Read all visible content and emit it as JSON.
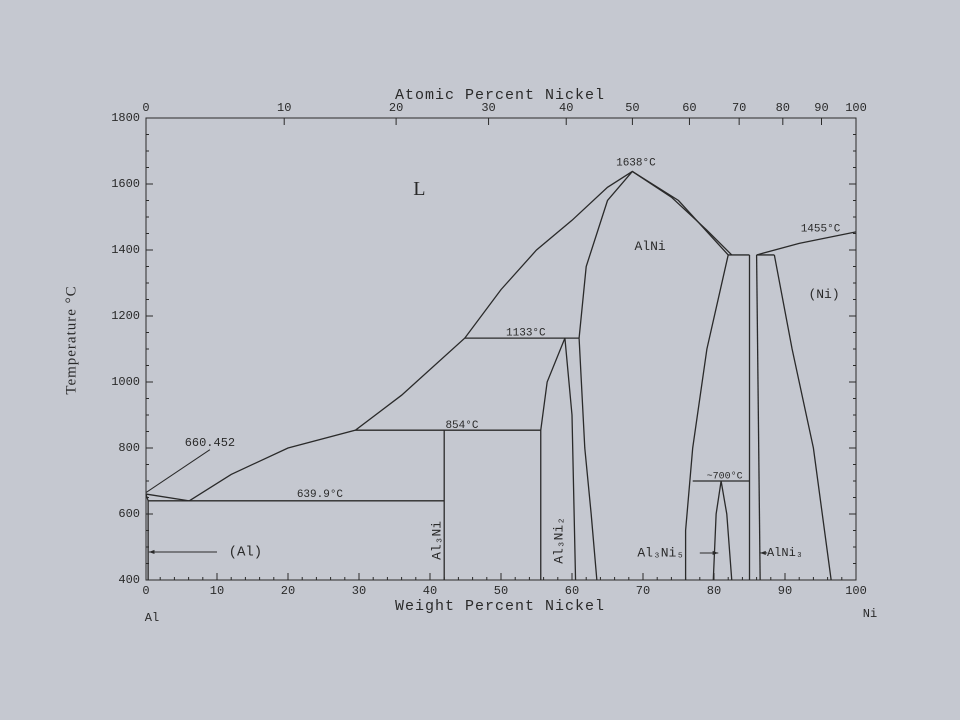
{
  "chart_data": {
    "type": "phase",
    "xlabel": "Weight Percent Nickel",
    "x2label": "Atomic Percent Nickel",
    "ylabel": "Temperature °C",
    "x_start_label": "Al",
    "x_end_label": "Ni",
    "xlim": [
      0,
      100
    ],
    "xticks": [
      0,
      10,
      20,
      30,
      40,
      50,
      60,
      70,
      80,
      90,
      100
    ],
    "x2ticks": [
      0,
      10,
      20,
      30,
      40,
      50,
      60,
      70,
      80,
      90,
      100
    ],
    "ylim": [
      400,
      1800
    ],
    "yticks": [
      400,
      600,
      800,
      1000,
      1200,
      1400,
      1600,
      1800
    ],
    "annotations": [
      "L",
      "1638°C",
      "AlNi",
      "1455°C",
      "(Ni)",
      "1133°C",
      "854°C",
      "660.452",
      "639.9°C",
      "(Al)",
      "Al₃Ni",
      "Al₃Ni₂",
      "Al₃Ni₅",
      "AlNi₃",
      "~700°C"
    ],
    "series": [
      {
        "color": "#2a2a2a",
        "x": [
          0,
          6.1
        ],
        "values": [
          660.452,
          639.9
        ]
      },
      {
        "color": "#2a2a2a",
        "x": [
          6.1,
          12,
          20,
          29.5,
          36,
          44.9,
          50,
          55,
          60,
          65,
          68.5,
          74,
          79,
          82.5
        ],
        "values": [
          639.9,
          720,
          800,
          854,
          960,
          1133,
          1280,
          1400,
          1490,
          1590,
          1638,
          1560,
          1460,
          1385
        ]
      },
      {
        "color": "#2a2a2a",
        "x": [
          0.3,
          42
        ],
        "values": [
          639.9,
          639.9
        ]
      },
      {
        "color": "#2a2a2a",
        "x": [
          0,
          0.3,
          0.3
        ],
        "values": [
          660.452,
          639.9,
          400
        ]
      },
      {
        "color": "#2a2a2a",
        "x": [
          29.5,
          55.6
        ],
        "values": [
          854,
          854
        ]
      },
      {
        "color": "#2a2a2a",
        "x": [
          42,
          42
        ],
        "values": [
          854,
          400
        ]
      },
      {
        "color": "#2a2a2a",
        "x": [
          44.9,
          61
        ],
        "values": [
          1133,
          1133
        ]
      },
      {
        "color": "#2a2a2a",
        "x": [
          55.6,
          55.6,
          56.5,
          59
        ],
        "values": [
          400,
          854,
          1000,
          1133
        ]
      },
      {
        "color": "#2a2a2a",
        "x": [
          59,
          60,
          60.5
        ],
        "values": [
          1133,
          900,
          400
        ]
      },
      {
        "color": "#2a2a2a",
        "x": [
          61,
          62,
          65,
          68.5
        ],
        "values": [
          1133,
          1350,
          1550,
          1638
        ]
      },
      {
        "color": "#2a2a2a",
        "x": [
          61,
          61.8,
          62.7,
          63.5
        ],
        "values": [
          1133,
          800,
          600,
          400
        ]
      },
      {
        "color": "#2a2a2a",
        "x": [
          68.5,
          75,
          82
        ],
        "values": [
          1638,
          1550,
          1385
        ]
      },
      {
        "color": "#2a2a2a",
        "x": [
          82,
          79,
          77,
          76,
          76
        ],
        "values": [
          1385,
          1100,
          800,
          550,
          400
        ]
      },
      {
        "color": "#2a2a2a",
        "x": [
          82,
          85
        ],
        "values": [
          1385,
          1385
        ]
      },
      {
        "color": "#2a2a2a",
        "x": [
          85,
          85
        ],
        "values": [
          1385,
          400
        ]
      },
      {
        "color": "#2a2a2a",
        "x": [
          86,
          86.5
        ],
        "values": [
          1385,
          400
        ]
      },
      {
        "color": "#2a2a2a",
        "x": [
          86,
          88.5
        ],
        "values": [
          1385,
          1385
        ]
      },
      {
        "color": "#2a2a2a",
        "x": [
          86,
          92,
          100
        ],
        "values": [
          1385,
          1420,
          1455
        ]
      },
      {
        "color": "#2a2a2a",
        "x": [
          88.5,
          91,
          94,
          96.5
        ],
        "values": [
          1385,
          1100,
          800,
          400
        ]
      },
      {
        "color": "#2a2a2a",
        "x": [
          77,
          85
        ],
        "values": [
          700,
          700
        ]
      },
      {
        "color": "#2a2a2a",
        "x": [
          79.9,
          80.3,
          81,
          81.8,
          82.5
        ],
        "values": [
          400,
          600,
          700,
          600,
          400
        ]
      }
    ]
  }
}
